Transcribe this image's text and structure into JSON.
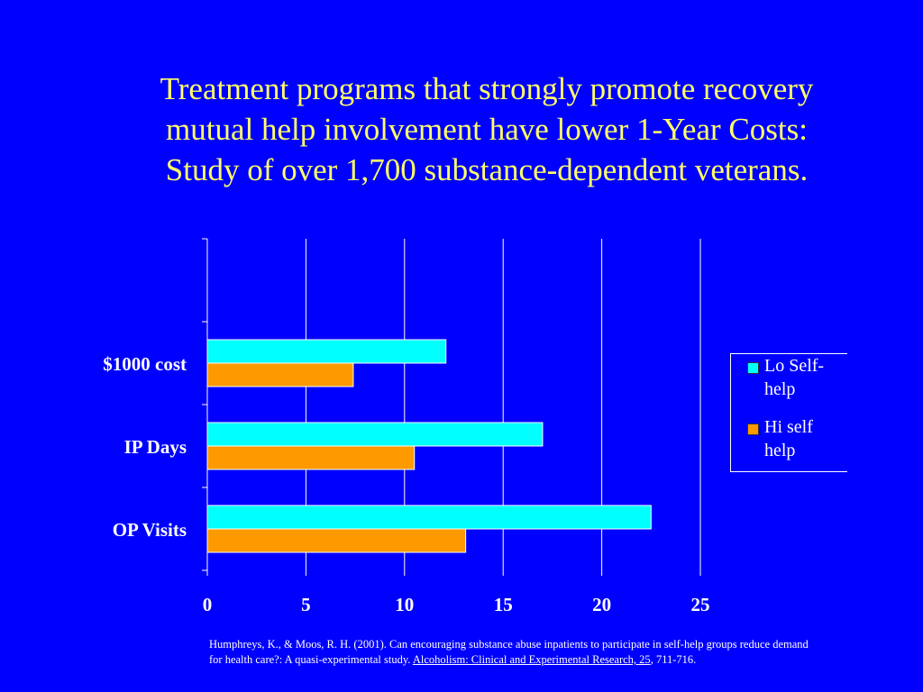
{
  "title": {
    "line1": "Treatment programs that strongly promote recovery",
    "line2": "mutual help involvement have lower 1-Year Costs:",
    "line3": "Study of over 1,700 substance-dependent veterans."
  },
  "colors": {
    "background": "#0000FF",
    "title": "#FFFF66",
    "lo_series": "#00FFFF",
    "hi_series": "#FF9900",
    "text": "#FFFFFF"
  },
  "legend": {
    "lo_line1": "Lo Self-",
    "lo_line2": "help",
    "hi_line1": "Hi self",
    "hi_line2": "help"
  },
  "chart_data": {
    "type": "bar",
    "orientation": "horizontal",
    "categories": [
      "$1000 cost",
      "IP Days",
      "OP Visits"
    ],
    "series": [
      {
        "name": "Lo Self-help",
        "values": [
          12.1,
          17,
          22.5
        ]
      },
      {
        "name": "Hi self help",
        "values": [
          7.4,
          10.5,
          13.1
        ]
      }
    ],
    "xlim": [
      0,
      25
    ],
    "xticks": [
      0,
      5,
      10,
      15,
      20,
      25
    ],
    "xgrid": true,
    "legend_position": "right"
  },
  "citation": {
    "part1": "Humphreys, K., & Moos, R. H. (2001).  Can encouraging substance abuse inpatients to participate in self-help groups reduce demand for health care?: A quasi-experimental study. ",
    "journal": "Alcoholism: Clinical and Experimental Research, 25",
    "part2": ", 711-716."
  }
}
